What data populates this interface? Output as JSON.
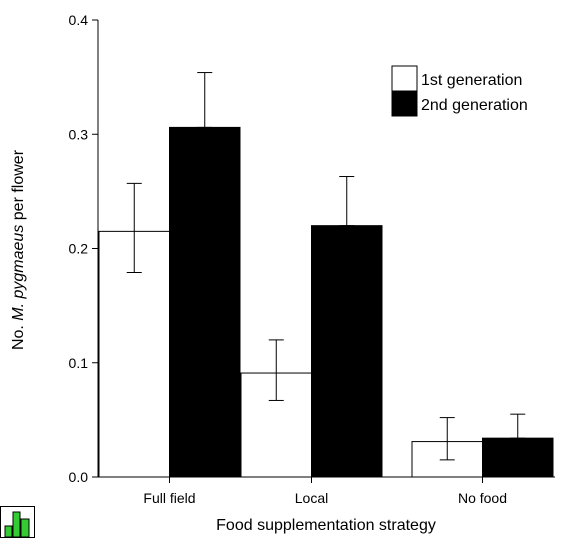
{
  "chart_data": {
    "type": "bar",
    "title": "",
    "xlabel": "Food supplementation strategy",
    "ylabel": {
      "prefix": "No. ",
      "italic": "M. pygmaeus",
      "suffix": " per flower"
    },
    "categories": [
      "Full field",
      "Local",
      "No food"
    ],
    "series": [
      {
        "name": "1st generation",
        "color": "#ffffff",
        "values": [
          0.215,
          0.091,
          0.031
        ],
        "error_low": [
          0.179,
          0.067,
          0.015
        ],
        "error_high": [
          0.257,
          0.12,
          0.052
        ]
      },
      {
        "name": "2nd generation",
        "color": "#000000",
        "values": [
          0.306,
          0.22,
          0.034
        ],
        "error_low": [
          0.306,
          0.22,
          0.034
        ],
        "error_high": [
          0.354,
          0.263,
          0.055
        ]
      }
    ],
    "ylim": [
      0,
      0.4
    ],
    "yticks": [
      "0.0",
      "0.1",
      "0.2",
      "0.3",
      "0.4"
    ],
    "grid": false,
    "legend_position": "top-right"
  },
  "logo": {
    "name": "chart-app-logo-icon",
    "colors": [
      "#33cc33",
      "#ffffff"
    ]
  }
}
